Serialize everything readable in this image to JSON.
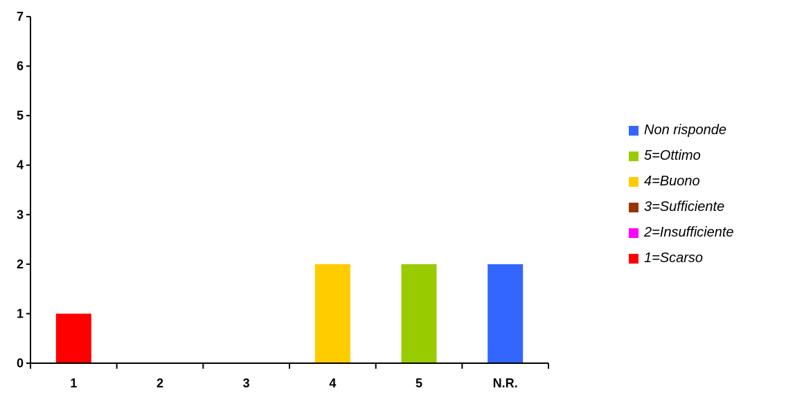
{
  "chart_data": {
    "type": "bar",
    "title": "",
    "xlabel": "",
    "ylabel": "",
    "categories": [
      "1",
      "2",
      "3",
      "4",
      "5",
      "N.R."
    ],
    "values": [
      1,
      0,
      0,
      2,
      2,
      2
    ],
    "bar_colors": [
      "#ff0000",
      "#ff00ff",
      "#993300",
      "#ffcc00",
      "#99cc00",
      "#3366ff"
    ],
    "ylim": [
      0,
      7
    ],
    "yticks": [
      "0",
      "1",
      "2",
      "3",
      "4",
      "5",
      "6",
      "7"
    ],
    "grid": false,
    "legend_position": "right",
    "legend": [
      {
        "label": "Non risponde",
        "color": "#3366ff"
      },
      {
        "label": "5=Ottimo",
        "color": "#99cc00"
      },
      {
        "label": "4=Buono",
        "color": "#ffcc00"
      },
      {
        "label": "3=Sufficiente",
        "color": "#993300"
      },
      {
        "label": "2=Insufficiente",
        "color": "#ff00ff"
      },
      {
        "label": "1=Scarso",
        "color": "#ff0000"
      }
    ]
  }
}
